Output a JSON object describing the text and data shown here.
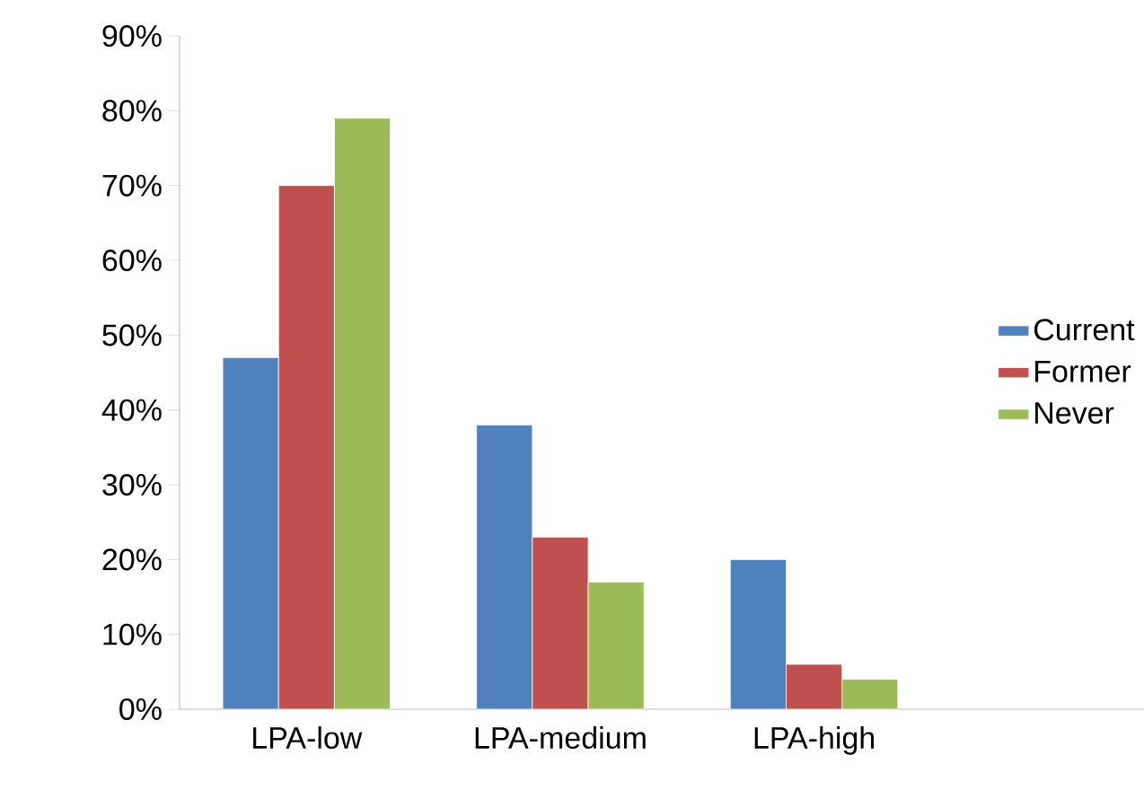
{
  "chart_data": {
    "type": "bar",
    "categories": [
      "LPA-low",
      "LPA-medium",
      "LPA-high"
    ],
    "series": [
      {
        "name": "Current",
        "color": "#4f81bd",
        "values": [
          47,
          38,
          20
        ]
      },
      {
        "name": "Former",
        "color": "#c0504d",
        "values": [
          70,
          23,
          6
        ]
      },
      {
        "name": "Never",
        "color": "#9bbb59",
        "values": [
          79,
          17,
          4
        ]
      }
    ],
    "ylim": [
      0,
      90
    ],
    "yticks": [
      {
        "value": 0,
        "label": "0%"
      },
      {
        "value": 10,
        "label": "10%"
      },
      {
        "value": 20,
        "label": "20%"
      },
      {
        "value": 30,
        "label": "30%"
      },
      {
        "value": 40,
        "label": "40%"
      },
      {
        "value": 50,
        "label": "50%"
      },
      {
        "value": 60,
        "label": "60%"
      },
      {
        "value": 70,
        "label": "70%"
      },
      {
        "value": 80,
        "label": "80%"
      },
      {
        "value": 90,
        "label": "90%"
      }
    ],
    "grid": false,
    "legend": "right"
  }
}
